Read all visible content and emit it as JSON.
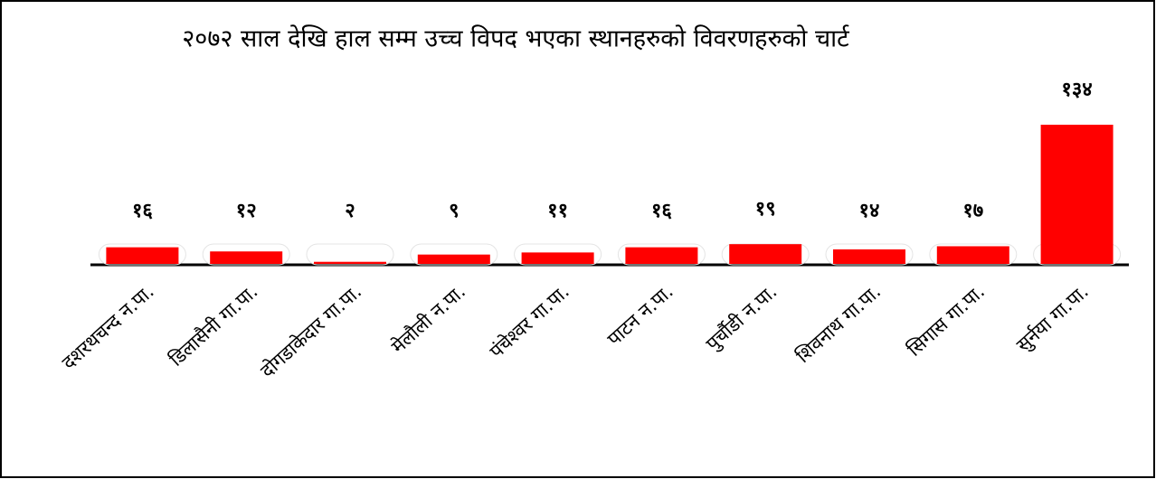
{
  "chart_data": {
    "type": "bar",
    "title": "२०७२ साल देखि हाल सम्म उच्च विपद भएका स्थानहरुको विवरणहरुको चार्ट",
    "categories": [
      "दशरथचन्द न.पा.",
      "डिलासैनी गा.पा.",
      "दोगडाकेदार गा.पा.",
      "मेलौली न.पा.",
      "पंचेश्वर गा.पा.",
      "पाटन न.पा.",
      "पुर्चौडी न.पा.",
      "शिवनाथ गा.पा.",
      "सिगास गा.पा.",
      "सुर्नया गा.पा."
    ],
    "values": [
      16,
      12,
      2,
      9,
      11,
      16,
      19,
      14,
      17,
      134
    ],
    "value_labels": [
      "१६",
      "१२",
      "२",
      "९",
      "११",
      "१६",
      "१९",
      "१४",
      "१७",
      "१३४"
    ],
    "color": "#ff0000"
  }
}
